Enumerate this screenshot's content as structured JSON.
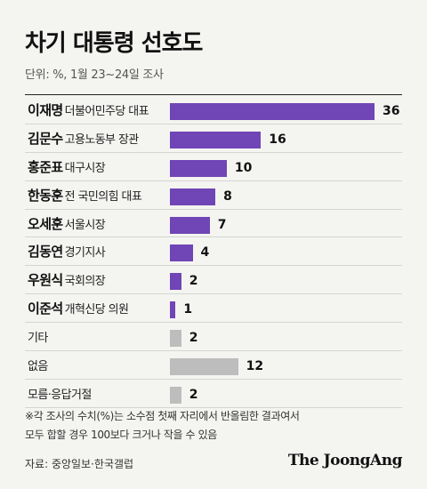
{
  "title": "차기 대통령 선호도",
  "unit_note": "단위: %, 1월 23~24일 조사",
  "footnote_lines": [
    "※각 조사의 수치(%)는 소수점 첫째 자리에서 반올림한 결과여서",
    "모두 합할 경우 100보다 크거나 작을 수 있음"
  ],
  "source": "자료: 중앙일보·한국갤럽",
  "brand": "The JoongAng",
  "colors": {
    "person": "#7045b5",
    "other": "#bdbdbd",
    "background": "#f4f4f1"
  },
  "chart_data": {
    "type": "bar",
    "orientation": "horizontal",
    "title": "차기 대통령 선호도",
    "unit": "%",
    "categories": [
      {
        "name": "이재명",
        "role": "더불어민주당 대표",
        "value": 36,
        "group": "person"
      },
      {
        "name": "김문수",
        "role": "고용노동부 장관",
        "value": 16,
        "group": "person"
      },
      {
        "name": "홍준표",
        "role": "대구시장",
        "value": 10,
        "group": "person"
      },
      {
        "name": "한동훈",
        "role": "전 국민의힘 대표",
        "value": 8,
        "group": "person"
      },
      {
        "name": "오세훈",
        "role": "서울시장",
        "value": 7,
        "group": "person"
      },
      {
        "name": "김동연",
        "role": "경기지사",
        "value": 4,
        "group": "person"
      },
      {
        "name": "우원식",
        "role": "국회의장",
        "value": 2,
        "group": "person"
      },
      {
        "name": "이준석",
        "role": "개혁신당 의원",
        "value": 1,
        "group": "person"
      },
      {
        "name": "기타",
        "role": "",
        "value": 2,
        "group": "other"
      },
      {
        "name": "없음",
        "role": "",
        "value": 12,
        "group": "other"
      },
      {
        "name": "모름·응답거절",
        "role": "",
        "value": 2,
        "group": "other"
      }
    ],
    "xlim": [
      0,
      36
    ]
  }
}
